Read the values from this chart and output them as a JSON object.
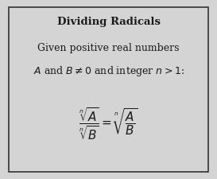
{
  "title": "Dividing Radicals",
  "line1": "Given positive real numbers",
  "line2_latex": "$A$ and $B \\neq 0$ and integer $n > 1$:",
  "formula_latex": "$\\dfrac{\\sqrt[n]{A}}{\\sqrt[n]{B}} = \\sqrt[n]{\\dfrac{A}{B}}$",
  "bg_color": "#d4d4d4",
  "border_color": "#333333",
  "text_color": "#1a1a1a",
  "title_fontsize": 9.5,
  "body_fontsize": 9.0,
  "formula_fontsize": 11,
  "fig_width": 2.73,
  "fig_height": 2.25,
  "dpi": 100
}
